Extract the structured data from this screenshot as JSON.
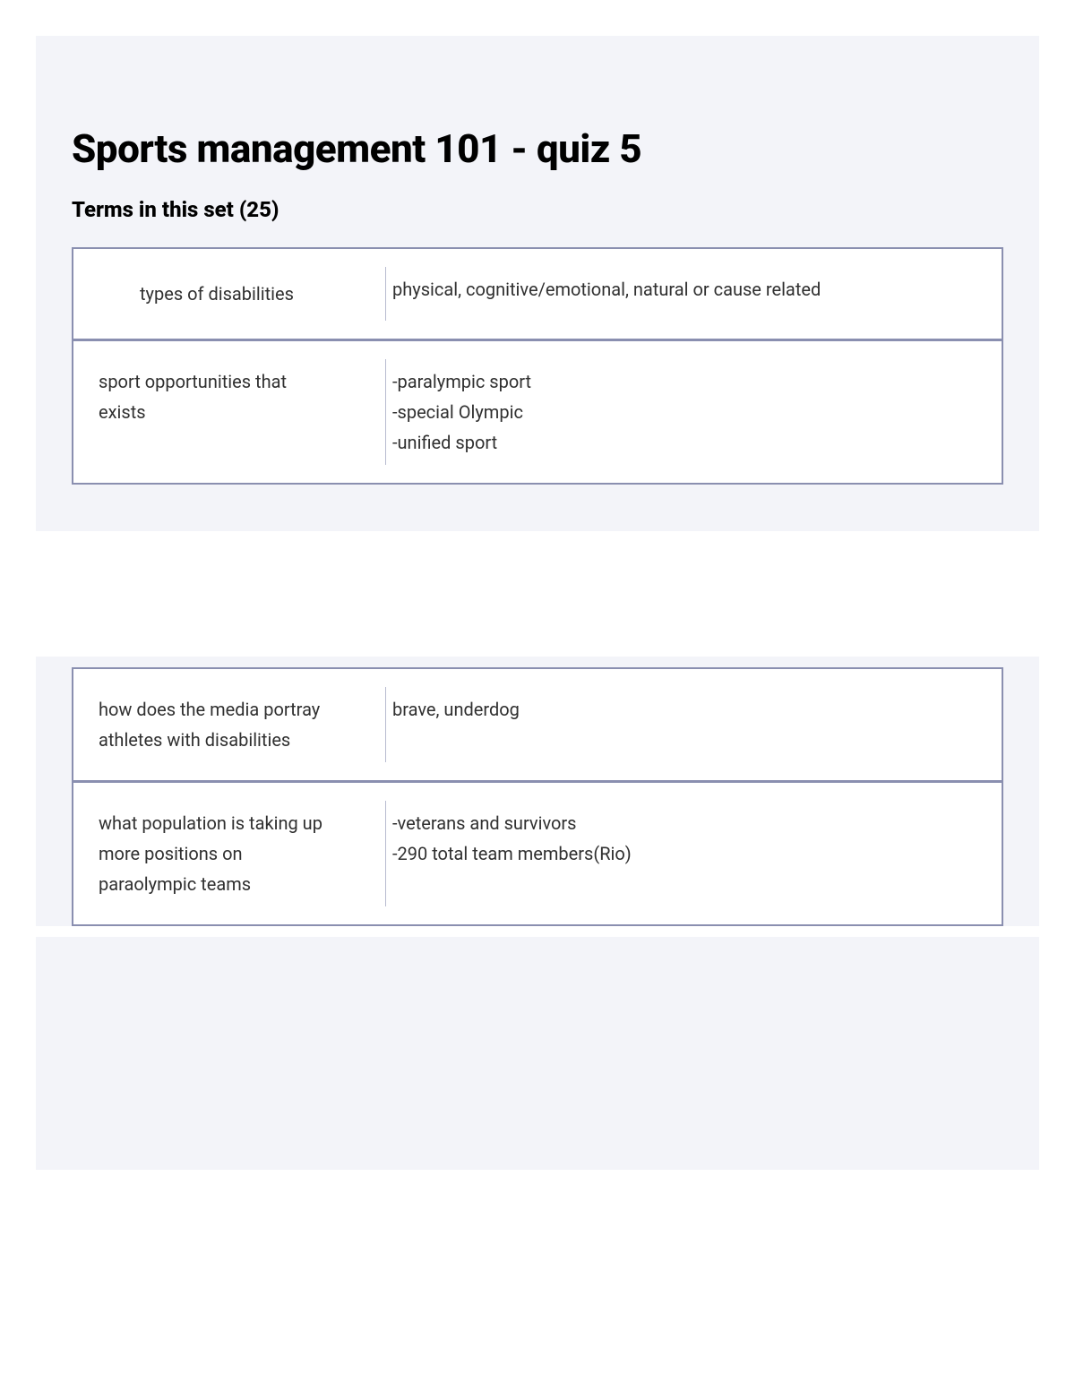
{
  "title": "Sports management 101 - quiz 5",
  "subtitle": "Terms in this set (25)",
  "group1": {
    "row0": {
      "term": "types of disabilities",
      "definition": "physical, cognitive/emotional, natural or cause related"
    },
    "row1": {
      "term": "sport opportunities that exists",
      "definition": "-paralympic sport\n-special Olympic\n-unified sport"
    }
  },
  "group2": {
    "row0": {
      "term": "how does the media portray athletes with disabilities",
      "definition": "brave, underdog"
    },
    "row1": {
      "term": "what population is taking up more positions on paraolympic teams",
      "definition": "-veterans and survivors\n-290 total team members(Rio)"
    }
  }
}
